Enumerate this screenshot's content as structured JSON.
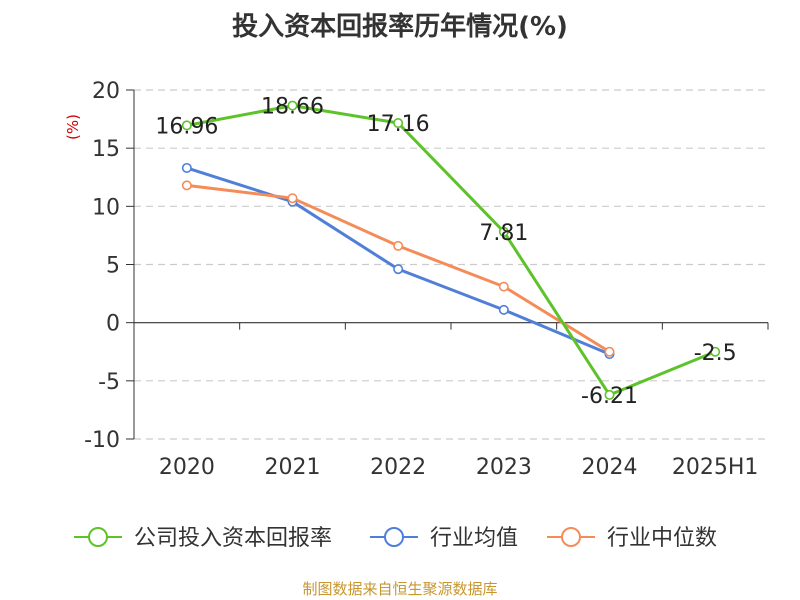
{
  "title": "投入资本回报率历年情况(%)",
  "source": "制图数据来自恒生聚源数据库",
  "chart_data": {
    "type": "line",
    "title": "投入资本回报率历年情况(%)",
    "ylabel": "(%)",
    "ylim": [
      -10,
      20
    ],
    "yticks": [
      20,
      15,
      10,
      5,
      0,
      -5,
      -10
    ],
    "categories": [
      "2020",
      "2021",
      "2022",
      "2023",
      "2024",
      "2025H1"
    ],
    "grid": true,
    "legend_position": "bottom",
    "series": [
      {
        "name": "公司投入资本回报率",
        "color": "#5ec22a",
        "values": [
          16.96,
          18.66,
          17.16,
          7.81,
          -6.21,
          -2.5
        ],
        "labels": [
          "16.96",
          "18.66",
          "17.16",
          "7.81",
          "-6.21",
          "-2.5"
        ]
      },
      {
        "name": "行业均值",
        "color": "#4f7fd8",
        "values": [
          13.3,
          10.4,
          4.6,
          1.1,
          -2.7,
          null
        ]
      },
      {
        "name": "行业中位数",
        "color": "#f58c58",
        "values": [
          11.8,
          10.7,
          6.6,
          3.1,
          -2.5,
          null
        ]
      }
    ]
  }
}
